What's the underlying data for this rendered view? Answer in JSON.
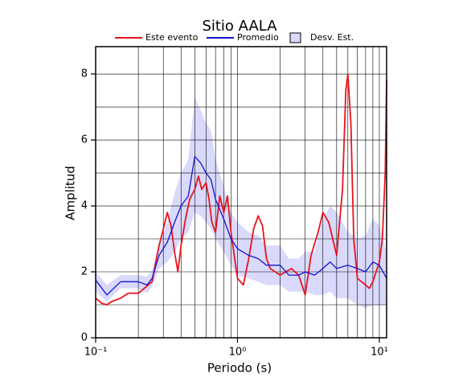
{
  "chart_data": {
    "type": "line",
    "title": "Sitio AALA",
    "xlabel": "Periodo (s)",
    "ylabel": "Amplitud",
    "xscale": "log",
    "xlim": [
      0.1,
      11.25
    ],
    "ylim": [
      0,
      8.83
    ],
    "xticks": [
      {
        "value": 0.1,
        "label": "10⁻¹"
      },
      {
        "value": 1,
        "label": "10⁰"
      },
      {
        "value": 10,
        "label": "10¹"
      }
    ],
    "yticks": [
      0,
      2,
      4,
      6,
      8
    ],
    "grid": true,
    "xgrid": [
      0.2,
      0.3,
      0.4,
      0.5,
      0.6,
      0.7,
      0.8,
      0.9,
      1,
      2,
      3,
      4,
      5,
      6,
      7,
      8,
      9,
      10
    ],
    "ygrid": [
      1,
      2,
      3,
      4,
      5,
      6,
      7,
      8
    ],
    "legend": "top",
    "band": {
      "name": "Desv. Est.",
      "color": "#d9d9fb",
      "x": [
        0.1,
        0.12,
        0.15,
        0.2,
        0.23,
        0.25,
        0.28,
        0.32,
        0.36,
        0.4,
        0.45,
        0.5,
        0.55,
        0.6,
        0.65,
        0.7,
        0.8,
        0.9,
        1.0,
        1.2,
        1.4,
        1.6,
        2.0,
        2.3,
        2.7,
        3.0,
        3.5,
        4.0,
        4.5,
        5.0,
        6.0,
        7.0,
        8.0,
        9.0,
        10,
        11.25
      ],
      "lower": [
        1.4,
        1.1,
        1.5,
        1.5,
        1.35,
        1.55,
        2.1,
        2.3,
        2.6,
        3.0,
        3.2,
        3.8,
        3.7,
        3.5,
        3.3,
        3.0,
        2.6,
        2.2,
        1.9,
        1.8,
        1.7,
        1.6,
        1.6,
        1.4,
        1.4,
        1.4,
        1.3,
        1.3,
        1.4,
        1.2,
        1.2,
        1.0,
        0.9,
        1.0,
        1.0,
        1.0
      ],
      "upper": [
        2.0,
        1.6,
        1.9,
        1.9,
        1.85,
        2.05,
        2.9,
        3.5,
        4.4,
        5.0,
        5.4,
        7.3,
        6.9,
        6.5,
        6.3,
        5.4,
        4.6,
        3.8,
        3.5,
        3.2,
        3.1,
        2.8,
        2.8,
        2.4,
        2.4,
        2.6,
        2.6,
        3.6,
        4.0,
        3.8,
        3.2,
        3.0,
        3.1,
        3.6,
        3.4,
        2.6
      ]
    },
    "series": [
      {
        "name": "Este evento",
        "color": "#e8141c",
        "x": [
          0.1,
          0.11,
          0.12,
          0.13,
          0.15,
          0.17,
          0.2,
          0.22,
          0.25,
          0.28,
          0.3,
          0.32,
          0.34,
          0.36,
          0.38,
          0.4,
          0.43,
          0.46,
          0.5,
          0.53,
          0.56,
          0.6,
          0.63,
          0.66,
          0.7,
          0.75,
          0.8,
          0.85,
          0.9,
          1.0,
          1.1,
          1.2,
          1.3,
          1.4,
          1.5,
          1.6,
          1.7,
          2.0,
          2.4,
          2.7,
          3.0,
          3.3,
          3.7,
          4.0,
          4.4,
          5.0,
          5.5,
          5.8,
          6.0,
          6.3,
          6.6,
          7.0,
          7.5,
          8.0,
          8.5,
          9.0,
          10.0,
          10.5,
          11.0,
          11.25
        ],
        "values": [
          1.2,
          1.05,
          1.0,
          1.1,
          1.2,
          1.35,
          1.35,
          1.5,
          1.7,
          2.8,
          3.3,
          3.8,
          3.4,
          2.6,
          2.0,
          2.8,
          3.6,
          4.2,
          4.5,
          4.9,
          4.5,
          4.7,
          4.2,
          3.5,
          3.2,
          4.3,
          3.8,
          4.3,
          3.2,
          1.8,
          1.6,
          2.4,
          3.3,
          3.7,
          3.4,
          2.4,
          2.1,
          1.9,
          2.1,
          1.9,
          1.3,
          2.5,
          3.2,
          3.8,
          3.5,
          2.5,
          4.5,
          7.5,
          8.0,
          6.5,
          3.0,
          1.8,
          1.7,
          1.6,
          1.5,
          1.7,
          2.3,
          3.0,
          5.0,
          7.8
        ]
      },
      {
        "name": "Promedio",
        "color": "#1414d2",
        "x": [
          0.1,
          0.12,
          0.15,
          0.2,
          0.23,
          0.25,
          0.28,
          0.32,
          0.36,
          0.4,
          0.45,
          0.5,
          0.55,
          0.6,
          0.65,
          0.7,
          0.8,
          0.9,
          1.0,
          1.2,
          1.4,
          1.6,
          2.0,
          2.3,
          2.7,
          3.0,
          3.5,
          4.0,
          4.5,
          5.0,
          6.0,
          7.0,
          8.0,
          9.0,
          10,
          11.25
        ],
        "values": [
          1.75,
          1.3,
          1.7,
          1.7,
          1.6,
          1.8,
          2.5,
          2.9,
          3.5,
          4.0,
          4.3,
          5.5,
          5.3,
          5.0,
          4.8,
          4.2,
          3.6,
          3.0,
          2.7,
          2.5,
          2.4,
          2.2,
          2.2,
          1.9,
          1.9,
          2.0,
          1.9,
          2.1,
          2.3,
          2.1,
          2.2,
          2.1,
          2.0,
          2.3,
          2.2,
          1.8
        ]
      }
    ]
  }
}
